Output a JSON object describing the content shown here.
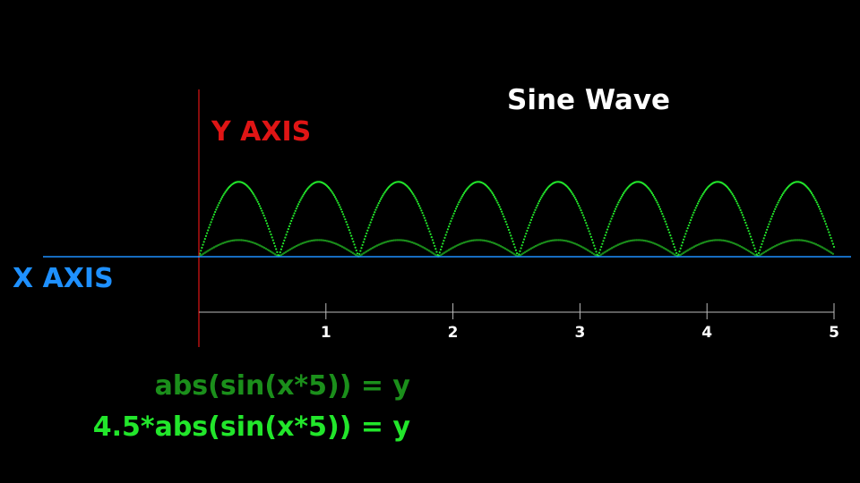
{
  "chart_data": {
    "type": "line",
    "title": "Sine Wave",
    "xlabel": "X AXIS",
    "ylabel": "Y AXIS",
    "xlim": [
      0,
      5
    ],
    "x_ticks": [
      1,
      2,
      3,
      4,
      5
    ],
    "series": [
      {
        "name": "abs(sin(x*5)) = y",
        "expression": "abs(sin(x*5))",
        "amplitude": 1,
        "color": "#1b8f1b",
        "style": "dotted"
      },
      {
        "name": "4.5*abs(sin(x*5)) = y",
        "expression": "4.5*abs(sin(x*5))",
        "amplitude": 4.5,
        "color": "#22e62b",
        "style": "dotted"
      }
    ],
    "colors": {
      "background": "#000000",
      "title": "#ffffff",
      "x_axis": "#1e90ff",
      "y_axis": "#e01515",
      "ruler": "#bbbbbb"
    }
  }
}
